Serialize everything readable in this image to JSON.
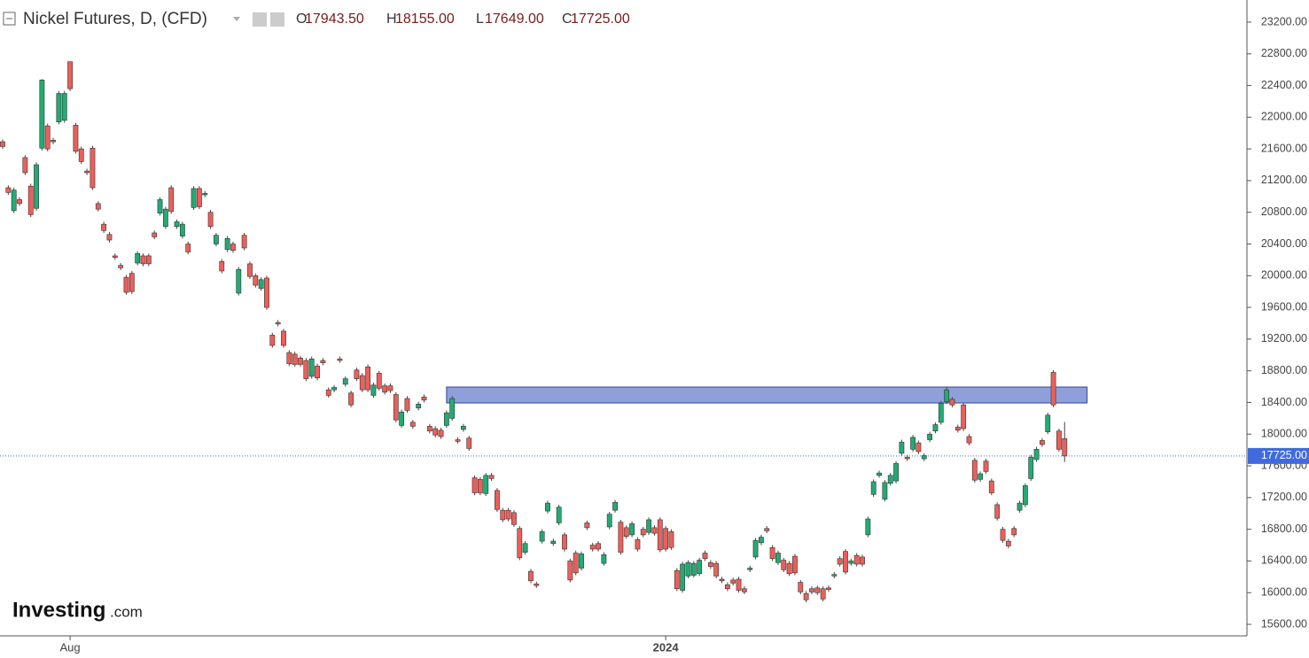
{
  "chart_data": {
    "type": "candlestick",
    "title": "Nickel Futures, D, (CFD)",
    "header_stats": [
      {
        "key": "O",
        "text": "17943.50"
      },
      {
        "key": "H",
        "text": "18155.00"
      },
      {
        "key": "L",
        "text": "17649.00"
      },
      {
        "key": "C",
        "text": "17725.00"
      }
    ],
    "logo": {
      "brand": "Investing",
      "suffix": ".com"
    },
    "up_color": "#22ab73",
    "down_color": "#ec5f5a",
    "ylim": [
      15455,
      23479
    ],
    "yticks": [
      {
        "value": 15600,
        "label": "15600.00"
      },
      {
        "value": 16000,
        "label": "16000.00"
      },
      {
        "value": 16400,
        "label": "16400.00"
      },
      {
        "value": 16800,
        "label": "16800.00"
      },
      {
        "value": 17200,
        "label": "17200.00"
      },
      {
        "value": 17600,
        "label": "17600.00"
      },
      {
        "value": 18000,
        "label": "18000.00"
      },
      {
        "value": 18400,
        "label": "18400.00"
      },
      {
        "value": 18800,
        "label": "18800.00"
      },
      {
        "value": 19200,
        "label": "19200.00"
      },
      {
        "value": 19600,
        "label": "19600.00"
      },
      {
        "value": 20000,
        "label": "20000.00"
      },
      {
        "value": 20400,
        "label": "20400.00"
      },
      {
        "value": 20800,
        "label": "20800.00"
      },
      {
        "value": 21200,
        "label": "21200.00"
      },
      {
        "value": 21600,
        "label": "21600.00"
      },
      {
        "value": 22000,
        "label": "22000.00"
      },
      {
        "value": 22400,
        "label": "22400.00"
      },
      {
        "value": 22800,
        "label": "22800.00"
      },
      {
        "value": 23200,
        "label": "23200.00"
      }
    ],
    "last_price": {
      "value": 17725,
      "label": "17725.00"
    },
    "zone": {
      "low": 18394,
      "high": 18595,
      "start": 79,
      "end": 193
    },
    "categories": [
      null,
      null,
      null,
      null,
      null,
      null,
      null,
      null,
      null,
      null,
      null,
      null,
      "Aug",
      null,
      null,
      null,
      null,
      null,
      null,
      null,
      null,
      null,
      null,
      null,
      null,
      null,
      null,
      null,
      null,
      null,
      null,
      null,
      null,
      null,
      null,
      null,
      null,
      null,
      null,
      null,
      null,
      null,
      null,
      null,
      null,
      null,
      null,
      null,
      null,
      null,
      null,
      null,
      null,
      null,
      null,
      null,
      null,
      null,
      null,
      null,
      null,
      null,
      null,
      null,
      null,
      null,
      null,
      null,
      null,
      null,
      null,
      null,
      null,
      null,
      null,
      null,
      null,
      null,
      null,
      null,
      null,
      null,
      null,
      null,
      null,
      null,
      null,
      null,
      null,
      null,
      null,
      null,
      null,
      null,
      null,
      null,
      null,
      null,
      null,
      null,
      null,
      null,
      null,
      null,
      null,
      null,
      null,
      null,
      null,
      null,
      null,
      null,
      null,
      null,
      null,
      null,
      null,
      null,
      "2024",
      null,
      null,
      null,
      null,
      null,
      null,
      null,
      null,
      null,
      null,
      null,
      null,
      null,
      null,
      null,
      null,
      null,
      null,
      null,
      null,
      null,
      null,
      null,
      null,
      null,
      null,
      null,
      null,
      null,
      null,
      null,
      null,
      null,
      null,
      null,
      null,
      null,
      null,
      null,
      null,
      null,
      null,
      null,
      null,
      null,
      null,
      null,
      null,
      null,
      null,
      null,
      null,
      null,
      null,
      null,
      null,
      null,
      null,
      null,
      null,
      null,
      null,
      null,
      null,
      null,
      null,
      null,
      null,
      null,
      null,
      null
    ],
    "candles": [
      [
        21690,
        21720,
        21600,
        21630
      ],
      [
        21110,
        21140,
        21020,
        21050
      ],
      [
        20820,
        21110,
        20790,
        21080
      ],
      [
        20960,
        20990,
        20880,
        20910
      ],
      [
        21490,
        21520,
        21270,
        21300
      ],
      [
        21130,
        21160,
        20740,
        20770
      ],
      [
        20850,
        21430,
        20820,
        21400
      ],
      [
        21610,
        22480,
        21580,
        22470
      ],
      [
        21890,
        21920,
        21570,
        21600
      ],
      [
        21710,
        21740,
        21660,
        21690
      ],
      [
        21940,
        22330,
        21910,
        22300
      ],
      [
        21960,
        22330,
        21930,
        22300
      ],
      [
        22700,
        22700,
        22330,
        22360
      ],
      [
        21900,
        21930,
        21540,
        21570
      ],
      [
        21600,
        21630,
        21410,
        21440
      ],
      [
        21320,
        21350,
        21270,
        21300
      ],
      [
        21610,
        21640,
        21080,
        21110
      ],
      [
        20910,
        20940,
        20810,
        20840
      ],
      [
        20650,
        20680,
        20540,
        20570
      ],
      [
        20520,
        20550,
        20420,
        20450
      ],
      [
        20250,
        20280,
        20200,
        20230
      ],
      [
        20130,
        20160,
        20070,
        20100
      ],
      [
        19980,
        20010,
        19760,
        19790
      ],
      [
        20030,
        20060,
        19770,
        19800
      ],
      [
        20160,
        20310,
        20130,
        20280
      ],
      [
        20250,
        20280,
        20120,
        20150
      ],
      [
        20250,
        20280,
        20120,
        20150
      ],
      [
        20540,
        20570,
        20460,
        20490
      ],
      [
        20790,
        20990,
        20760,
        20960
      ],
      [
        20620,
        20870,
        20590,
        20840
      ],
      [
        21110,
        21140,
        20780,
        20810
      ],
      [
        20620,
        20710,
        20590,
        20680
      ],
      [
        20500,
        20680,
        20470,
        20650
      ],
      [
        20400,
        20430,
        20270,
        20300
      ],
      [
        20860,
        21130,
        20830,
        21100
      ],
      [
        21100,
        21130,
        20840,
        20870
      ],
      [
        21020,
        21070,
        20990,
        21040
      ],
      [
        20800,
        20830,
        20590,
        20620
      ],
      [
        20400,
        20540,
        20370,
        20510
      ],
      [
        20180,
        20210,
        20030,
        20060
      ],
      [
        20330,
        20500,
        20300,
        20470
      ],
      [
        20400,
        20430,
        20290,
        20320
      ],
      [
        19780,
        20110,
        19750,
        20080
      ],
      [
        20510,
        20540,
        20320,
        20350
      ],
      [
        20150,
        20180,
        19960,
        19990
      ],
      [
        20000,
        20030,
        19850,
        19880
      ],
      [
        19840,
        19980,
        19810,
        19950
      ],
      [
        19970,
        20000,
        19570,
        19600
      ],
      [
        19250,
        19280,
        19090,
        19120
      ],
      [
        19410,
        19440,
        19360,
        19390
      ],
      [
        19300,
        19330,
        19090,
        19120
      ],
      [
        19030,
        19060,
        18860,
        18890
      ],
      [
        19010,
        19040,
        18850,
        18880
      ],
      [
        18960,
        18990,
        18850,
        18880
      ],
      [
        18930,
        18960,
        18670,
        18700
      ],
      [
        18730,
        18980,
        18700,
        18950
      ],
      [
        18860,
        18890,
        18680,
        18710
      ],
      [
        18930,
        18960,
        18870,
        18900
      ],
      [
        18560,
        18590,
        18460,
        18490
      ],
      [
        18560,
        18620,
        18530,
        18590
      ],
      [
        18950,
        18980,
        18900,
        18930
      ],
      [
        18630,
        18730,
        18600,
        18700
      ],
      [
        18520,
        18550,
        18340,
        18370
      ],
      [
        18810,
        18840,
        18670,
        18700
      ],
      [
        18740,
        18770,
        18530,
        18560
      ],
      [
        18850,
        18880,
        18530,
        18560
      ],
      [
        18490,
        18650,
        18460,
        18620
      ],
      [
        18770,
        18800,
        18550,
        18580
      ],
      [
        18610,
        18640,
        18500,
        18530
      ],
      [
        18610,
        18640,
        18520,
        18550
      ],
      [
        18500,
        18530,
        18150,
        18180
      ],
      [
        18110,
        18310,
        18080,
        18280
      ],
      [
        18450,
        18480,
        18270,
        18300
      ],
      [
        18150,
        18180,
        18070,
        18100
      ],
      [
        18330,
        18410,
        18300,
        18380
      ],
      [
        18470,
        18500,
        18400,
        18430
      ],
      [
        18100,
        18130,
        18010,
        18040
      ],
      [
        18070,
        18100,
        17960,
        17990
      ],
      [
        18050,
        18080,
        17940,
        17970
      ],
      [
        18110,
        18300,
        18080,
        18270
      ],
      [
        18200,
        18480,
        18170,
        18450
      ],
      [
        17930,
        17960,
        17880,
        17910
      ],
      [
        18060,
        18130,
        18030,
        18100
      ],
      [
        17950,
        17980,
        17790,
        17820
      ],
      [
        17450,
        17480,
        17230,
        17260
      ],
      [
        17430,
        17460,
        17230,
        17260
      ],
      [
        17250,
        17510,
        17220,
        17480
      ],
      [
        17480,
        17510,
        17410,
        17440
      ],
      [
        17290,
        17320,
        17020,
        17050
      ],
      [
        17040,
        17070,
        16890,
        16920
      ],
      [
        17040,
        17070,
        16900,
        16930
      ],
      [
        17010,
        17040,
        16830,
        16860
      ],
      [
        16810,
        16840,
        16410,
        16440
      ],
      [
        16510,
        16650,
        16480,
        16620
      ],
      [
        16270,
        16300,
        16120,
        16150
      ],
      [
        16110,
        16140,
        16060,
        16090
      ],
      [
        16650,
        16800,
        16620,
        16770
      ],
      [
        17030,
        17160,
        17000,
        17130
      ],
      [
        16620,
        16680,
        16590,
        16650
      ],
      [
        16880,
        17110,
        16850,
        17080
      ],
      [
        16730,
        16760,
        16520,
        16550
      ],
      [
        16400,
        16430,
        16130,
        16160
      ],
      [
        16500,
        16530,
        16220,
        16250
      ],
      [
        16310,
        16520,
        16280,
        16490
      ],
      [
        16880,
        16910,
        16790,
        16820
      ],
      [
        16600,
        16630,
        16520,
        16550
      ],
      [
        16620,
        16650,
        16520,
        16550
      ],
      [
        16370,
        16510,
        16340,
        16480
      ],
      [
        16830,
        17020,
        16800,
        16990
      ],
      [
        17040,
        17170,
        17010,
        17140
      ],
      [
        16890,
        16920,
        16480,
        16510
      ],
      [
        16820,
        16850,
        16680,
        16710
      ],
      [
        16730,
        16900,
        16700,
        16870
      ],
      [
        16670,
        16700,
        16520,
        16550
      ],
      [
        16800,
        16830,
        16700,
        16730
      ],
      [
        16760,
        16950,
        16730,
        16920
      ],
      [
        16820,
        16850,
        16720,
        16750
      ],
      [
        16920,
        16950,
        16510,
        16540
      ],
      [
        16810,
        16840,
        16520,
        16550
      ],
      [
        16770,
        16800,
        16540,
        16570
      ],
      [
        16280,
        16310,
        16020,
        16050
      ],
      [
        16030,
        16390,
        16000,
        16360
      ],
      [
        16210,
        16410,
        16180,
        16380
      ],
      [
        16220,
        16400,
        16190,
        16370
      ],
      [
        16240,
        16440,
        16210,
        16410
      ],
      [
        16500,
        16530,
        16400,
        16430
      ],
      [
        16380,
        16410,
        16300,
        16330
      ],
      [
        16370,
        16400,
        16180,
        16210
      ],
      [
        16170,
        16200,
        16120,
        16150
      ],
      [
        16100,
        16130,
        16020,
        16050
      ],
      [
        16160,
        16190,
        16090,
        16120
      ],
      [
        16170,
        16200,
        16000,
        16030
      ],
      [
        16050,
        16080,
        15980,
        16010
      ],
      [
        16290,
        16340,
        16260,
        16310
      ],
      [
        16450,
        16690,
        16420,
        16660
      ],
      [
        16630,
        16730,
        16600,
        16700
      ],
      [
        16810,
        16840,
        16750,
        16780
      ],
      [
        16570,
        16600,
        16400,
        16430
      ],
      [
        16380,
        16530,
        16350,
        16500
      ],
      [
        16410,
        16440,
        16260,
        16290
      ],
      [
        16370,
        16400,
        16210,
        16240
      ],
      [
        16460,
        16490,
        16220,
        16250
      ],
      [
        16130,
        16160,
        15980,
        16010
      ],
      [
        15990,
        16020,
        15880,
        15910
      ],
      [
        16050,
        16080,
        15980,
        16010
      ],
      [
        16060,
        16090,
        15970,
        16000
      ],
      [
        16050,
        16080,
        15890,
        15920
      ],
      [
        16060,
        16090,
        16010,
        16040
      ],
      [
        16210,
        16260,
        16180,
        16230
      ],
      [
        16430,
        16460,
        16330,
        16360
      ],
      [
        16520,
        16550,
        16230,
        16260
      ],
      [
        16370,
        16430,
        16340,
        16400
      ],
      [
        16470,
        16500,
        16330,
        16360
      ],
      [
        16450,
        16480,
        16330,
        16360
      ],
      [
        16730,
        16960,
        16700,
        16930
      ],
      [
        17240,
        17430,
        17210,
        17400
      ],
      [
        17480,
        17540,
        17450,
        17510
      ],
      [
        17180,
        17420,
        17150,
        17390
      ],
      [
        17380,
        17510,
        17350,
        17480
      ],
      [
        17410,
        17660,
        17380,
        17630
      ],
      [
        17760,
        17930,
        17730,
        17900
      ],
      [
        17710,
        17740,
        17660,
        17690
      ],
      [
        17810,
        17990,
        17780,
        17960
      ],
      [
        17890,
        17920,
        17750,
        17780
      ],
      [
        17690,
        17760,
        17660,
        17730
      ],
      [
        17930,
        18030,
        17900,
        18000
      ],
      [
        18040,
        18150,
        18010,
        18120
      ],
      [
        18150,
        18420,
        18120,
        18390
      ],
      [
        18410,
        18590,
        18380,
        18560
      ],
      [
        18440,
        18470,
        18340,
        18370
      ],
      [
        18090,
        18120,
        18020,
        18050
      ],
      [
        18370,
        18400,
        18040,
        18070
      ],
      [
        17970,
        18000,
        17860,
        17890
      ],
      [
        17670,
        17700,
        17390,
        17420
      ],
      [
        17430,
        17530,
        17400,
        17500
      ],
      [
        17660,
        17690,
        17500,
        17530
      ],
      [
        17410,
        17440,
        17230,
        17260
      ],
      [
        17110,
        17140,
        16910,
        16940
      ],
      [
        16800,
        16830,
        16630,
        16660
      ],
      [
        16650,
        16680,
        16560,
        16590
      ],
      [
        16810,
        16840,
        16700,
        16730
      ],
      [
        17040,
        17160,
        17010,
        17130
      ],
      [
        17110,
        17380,
        17080,
        17350
      ],
      [
        17440,
        17740,
        17410,
        17710
      ],
      [
        17680,
        17840,
        17650,
        17810
      ],
      [
        17920,
        17950,
        17840,
        17870
      ],
      [
        18030,
        18270,
        18000,
        18240
      ],
      [
        18780,
        18810,
        18340,
        18370
      ],
      [
        18040,
        18070,
        17780,
        17810
      ],
      [
        17943.5,
        18155,
        17649,
        17725
      ]
    ]
  }
}
